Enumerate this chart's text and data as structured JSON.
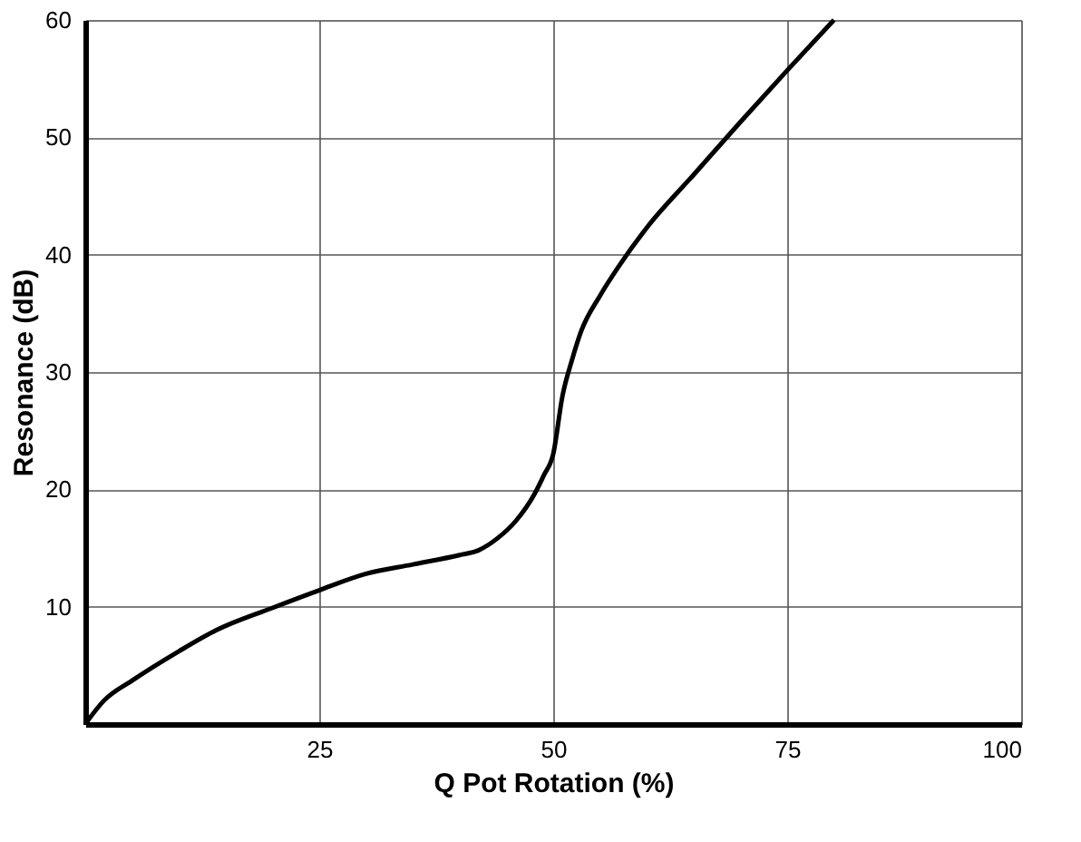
{
  "chart_data": {
    "type": "line",
    "xlabel": "Q Pot Rotation (%)",
    "ylabel": "Resonance (dB)",
    "x": [
      0,
      2,
      5,
      10,
      14,
      20,
      25,
      30,
      35,
      40,
      42,
      44,
      46,
      48,
      49,
      50,
      51,
      52,
      53,
      55,
      57,
      60,
      65,
      70,
      75,
      80
    ],
    "series": [
      {
        "color": "#000000",
        "values": [
          0,
          2,
          3.7,
          6.2,
          8,
          9.9,
          11.4,
          12.8,
          13.6,
          14.4,
          14.8,
          15.8,
          17.3,
          19.6,
          21.2,
          23,
          28,
          31,
          33.5,
          36.5,
          39,
          42.3,
          46.8,
          51.3,
          55.7,
          60
        ]
      }
    ],
    "xlim": [
      0,
      100
    ],
    "ylim": [
      0,
      60
    ],
    "xticks": [
      25,
      50,
      75,
      100
    ],
    "yticks": [
      10,
      20,
      30,
      40,
      50,
      60
    ],
    "grid": true,
    "marker": "none",
    "line_style": "solid"
  }
}
